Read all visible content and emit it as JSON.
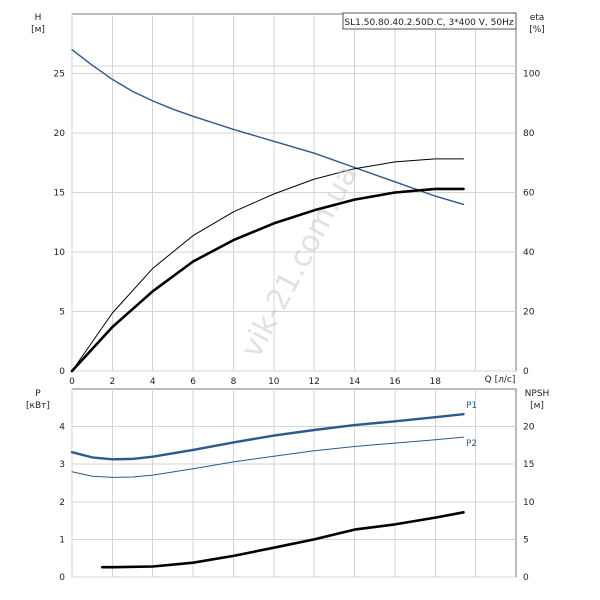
{
  "chart_data": [
    {
      "type": "line",
      "title": "SL1.50.80.40.2.50D.C, 3*400 V, 50Hz",
      "x_axis": {
        "label": "Q [л/с]",
        "range": [
          0,
          22
        ],
        "ticks": [
          0,
          2,
          4,
          6,
          8,
          10,
          12,
          14,
          16,
          18
        ]
      },
      "y_left": {
        "label": "H",
        "unit": "[м]",
        "range": [
          0,
          30
        ],
        "ticks": [
          0,
          5,
          10,
          15,
          20,
          25
        ]
      },
      "y_right": {
        "label": "eta",
        "unit": "[%]",
        "range": [
          0,
          120
        ],
        "ticks": [
          0,
          20,
          40,
          60,
          80,
          100
        ]
      },
      "grid": true,
      "series": [
        {
          "axis": "left",
          "color": "#2a5b8c",
          "x": [
            0,
            1,
            2,
            3,
            4,
            5,
            6,
            8,
            10,
            12,
            14,
            16,
            18,
            19.4
          ],
          "y": [
            27.0,
            25.7,
            24.5,
            23.5,
            22.7,
            22.0,
            21.4,
            20.3,
            19.3,
            18.3,
            17.1,
            15.9,
            14.7,
            14.0
          ]
        },
        {
          "axis": "left",
          "color": "#000000",
          "x": [
            0,
            2,
            4,
            6,
            8,
            10,
            12,
            14,
            16,
            18,
            19.4
          ],
          "y": [
            0,
            3.7,
            6.7,
            9.2,
            11.0,
            12.4,
            13.5,
            14.4,
            15.0,
            15.3,
            15.3
          ]
        },
        {
          "axis": "right",
          "color": "#000000",
          "x": [
            0,
            2,
            4,
            6,
            8,
            10,
            12,
            14,
            16,
            18,
            19.4
          ],
          "y": [
            0,
            19.5,
            34.5,
            45.5,
            53.5,
            59.5,
            64.5,
            68.0,
            70.3,
            71.3,
            71.3
          ]
        }
      ]
    },
    {
      "type": "line",
      "x_axis": {
        "range": [
          0,
          22
        ],
        "ticks": [
          0,
          2,
          4,
          6,
          8,
          10,
          12,
          14,
          16,
          18
        ]
      },
      "y_left": {
        "label": "P",
        "unit": "[кВт]",
        "range": [
          0,
          5
        ],
        "ticks": [
          0,
          1,
          2,
          3,
          4
        ]
      },
      "y_right": {
        "label": "NPSH",
        "unit": "[м]",
        "range": [
          0,
          25
        ],
        "ticks": [
          0,
          5,
          10,
          15,
          20
        ]
      },
      "grid": true,
      "series": [
        {
          "name": "P1",
          "axis": "left",
          "color": "#2a5b8c",
          "x": [
            0,
            1,
            2,
            3,
            4,
            6,
            8,
            10,
            12,
            14,
            16,
            18,
            19.4
          ],
          "y": [
            3.32,
            3.18,
            3.13,
            3.14,
            3.2,
            3.38,
            3.58,
            3.76,
            3.91,
            4.04,
            4.14,
            4.25,
            4.33
          ]
        },
        {
          "name": "P2",
          "axis": "left",
          "color": "#2a5b8c",
          "x": [
            0,
            1,
            2,
            3,
            4,
            6,
            8,
            10,
            12,
            14,
            16,
            18,
            19.4
          ],
          "y": [
            2.8,
            2.68,
            2.65,
            2.66,
            2.71,
            2.88,
            3.06,
            3.21,
            3.36,
            3.47,
            3.56,
            3.65,
            3.72
          ]
        },
        {
          "axis": "right",
          "color": "#000000",
          "x": [
            1.5,
            2,
            4,
            6,
            8,
            10,
            12,
            14,
            16,
            18,
            19.4
          ],
          "y": [
            1.3,
            1.3,
            1.4,
            1.9,
            2.8,
            3.9,
            5.0,
            6.3,
            7.0,
            7.9,
            8.6
          ]
        }
      ]
    }
  ],
  "watermark": "vik-21.com.ua"
}
